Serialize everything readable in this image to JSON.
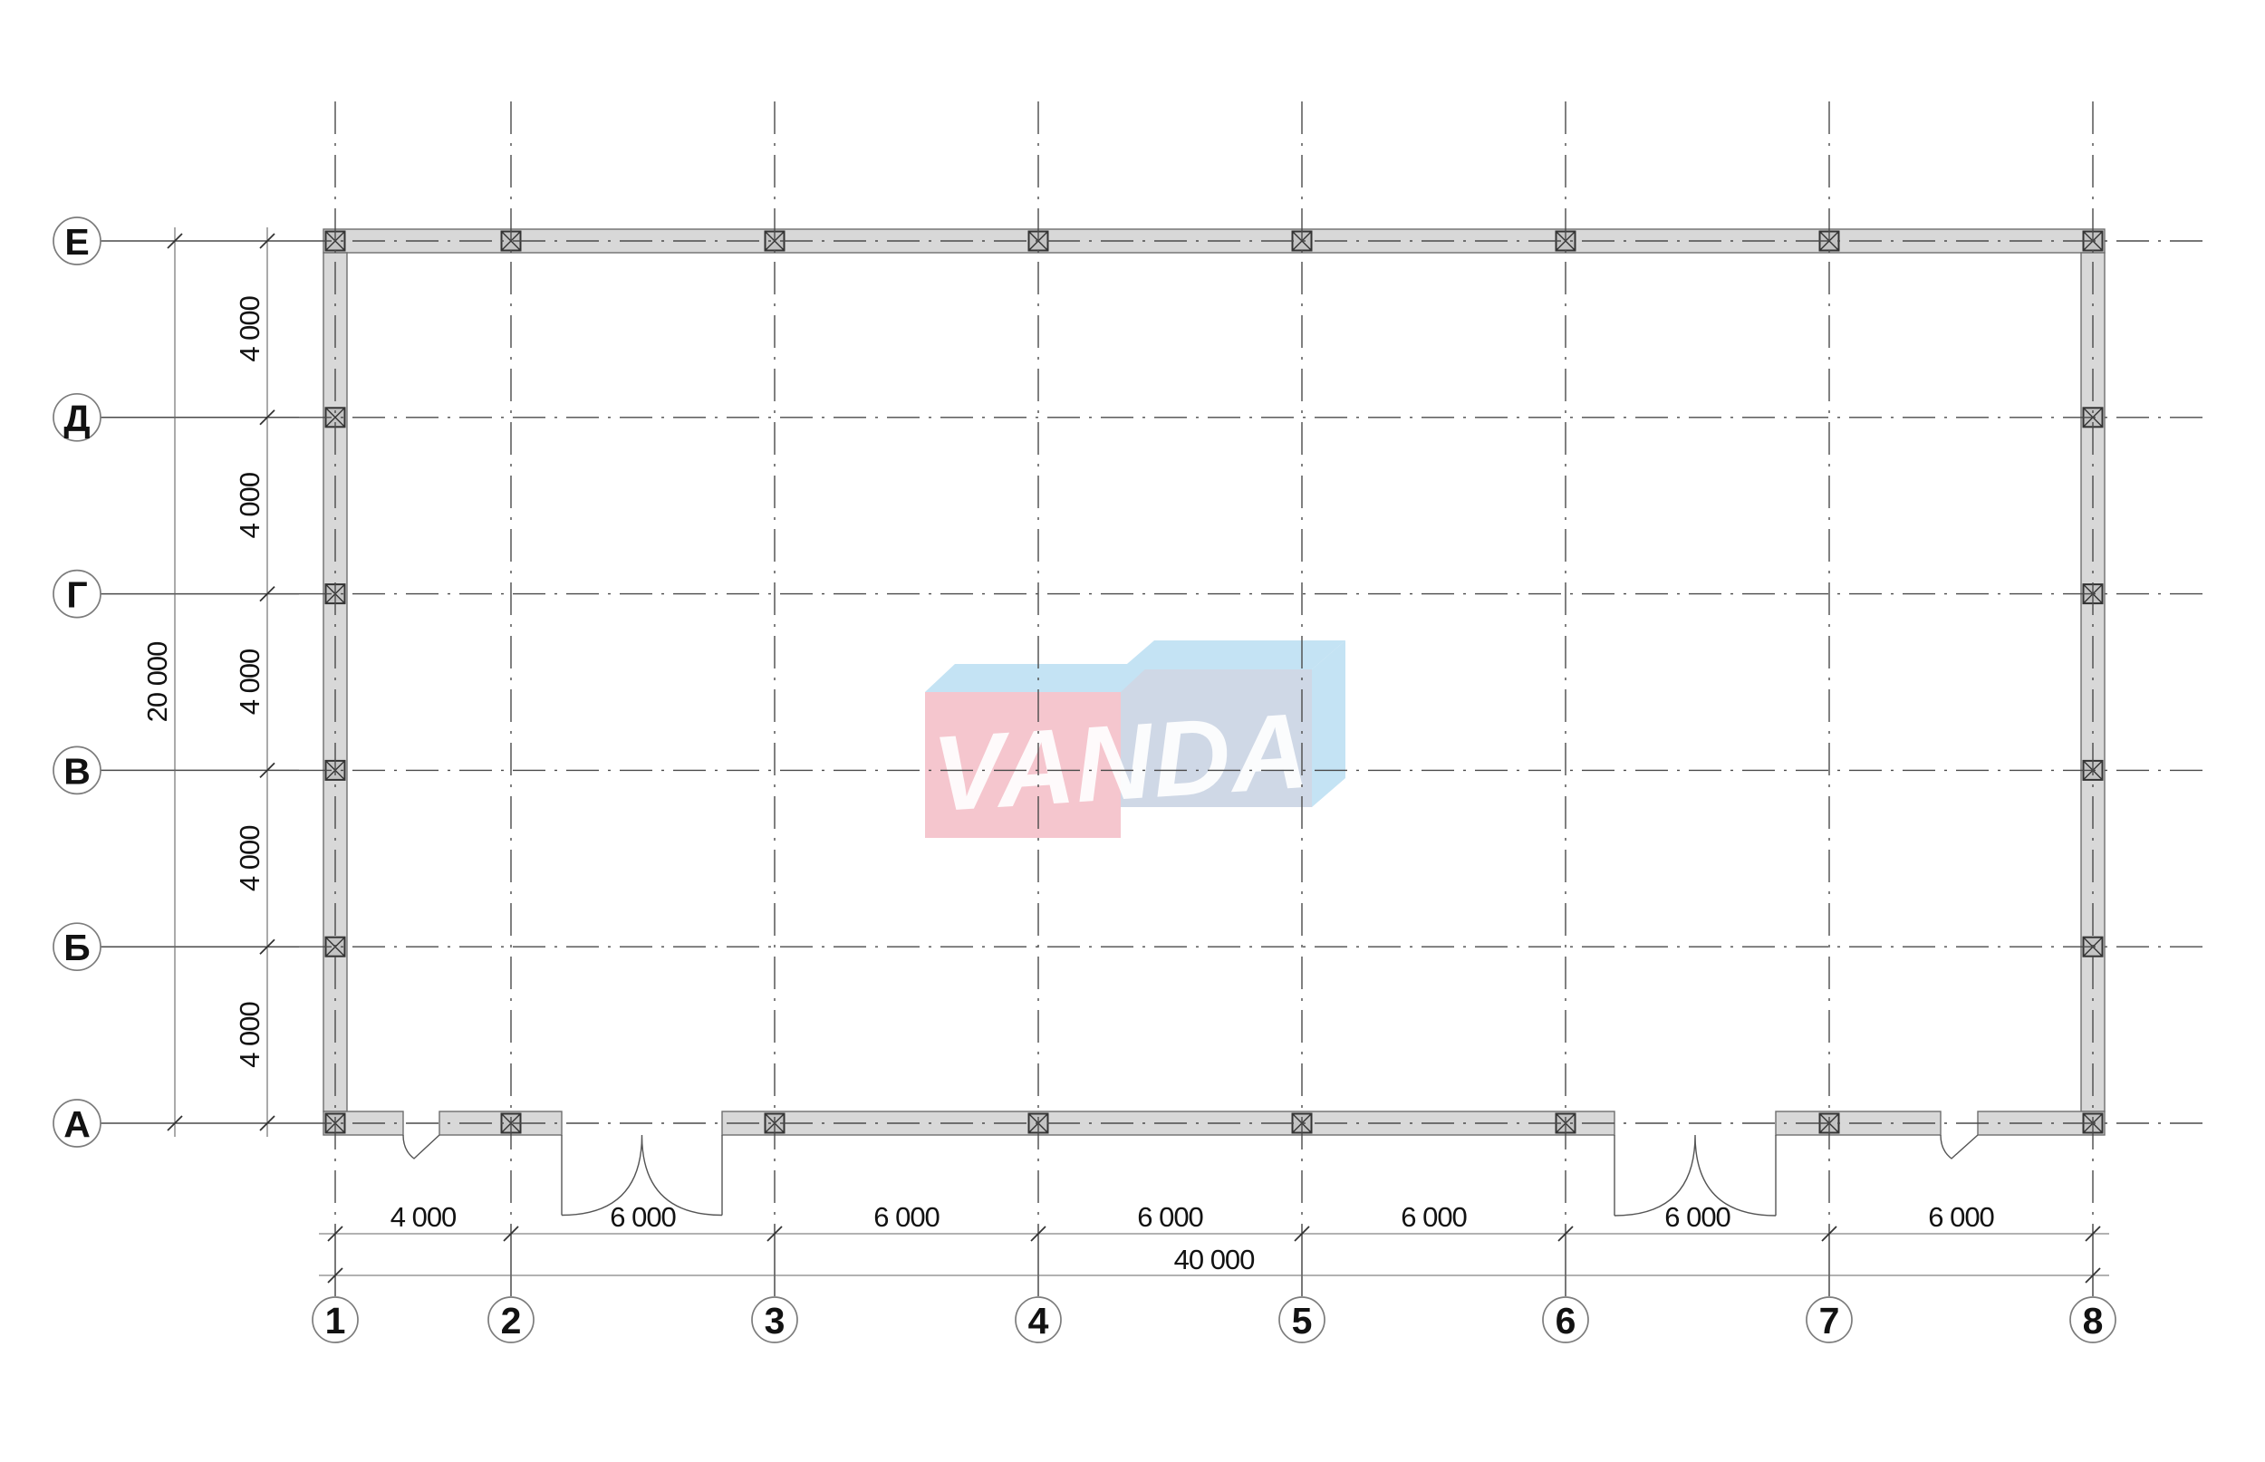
{
  "plan": {
    "grid": {
      "rows": [
        {
          "label": "Е"
        },
        {
          "label": "Д"
        },
        {
          "label": "Г"
        },
        {
          "label": "В"
        },
        {
          "label": "Б"
        },
        {
          "label": "А"
        }
      ],
      "cols": [
        {
          "label": "1"
        },
        {
          "label": "2"
        },
        {
          "label": "3"
        },
        {
          "label": "4"
        },
        {
          "label": "5"
        },
        {
          "label": "6"
        },
        {
          "label": "7"
        },
        {
          "label": "8"
        }
      ]
    },
    "dimensions": {
      "left": {
        "segments": [
          "4 000",
          "4 000",
          "4 000",
          "4 000",
          "4 000"
        ],
        "total": "20 000"
      },
      "bottom": {
        "segments": [
          "4 000",
          "6 000",
          "6 000",
          "6 000",
          "6 000",
          "6 000",
          "6 000"
        ],
        "total": "40 000"
      }
    },
    "logo": {
      "text": "VANDA",
      "pink": "#f5c6ce",
      "light_blue": "#c4e3f4",
      "steel_blue": "#cfd8e6",
      "letter_color": "#ffffff"
    },
    "colors": {
      "background": "#ffffff",
      "wall_fill": "#d8d8d8",
      "wall_stroke": "#6e6e6e",
      "column_fill": "#c3c3c3",
      "column_stroke": "#333333",
      "axis_line": "#4a4a4a",
      "dimension_line": "#666666",
      "text": "#121212",
      "bubble_stroke": "#7c7c7c"
    }
  }
}
